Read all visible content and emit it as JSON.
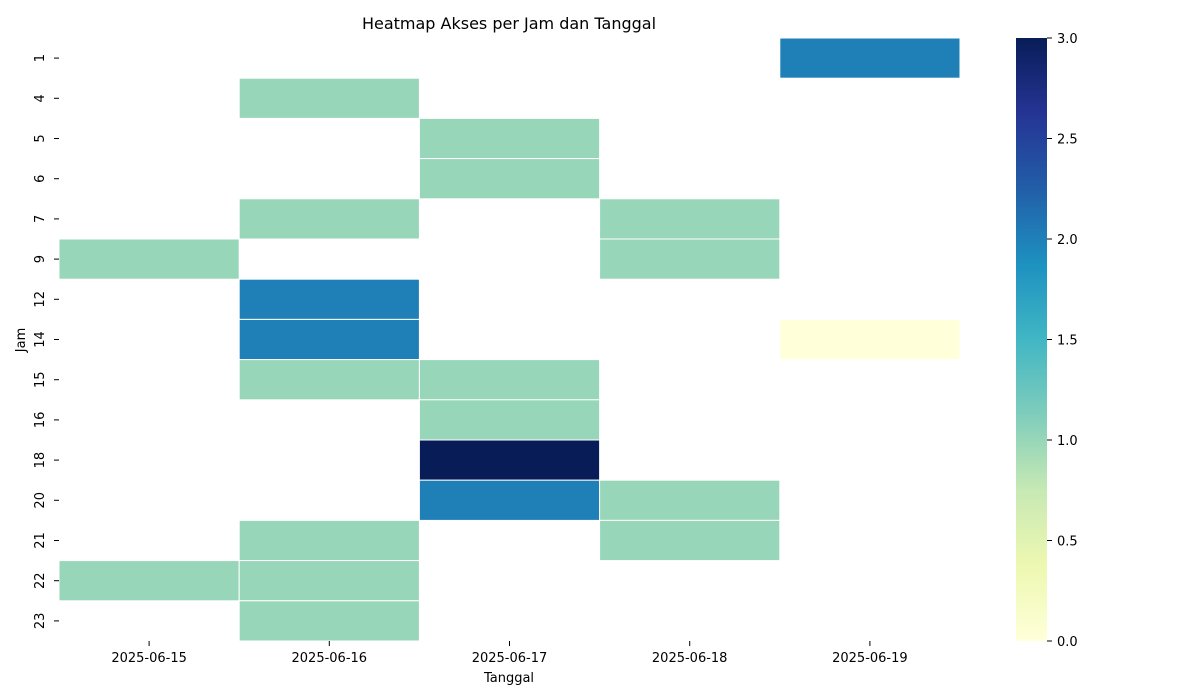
{
  "chart_data": {
    "type": "heatmap",
    "title": "Heatmap Akses per Jam dan Tanggal",
    "xlabel": "Tanggal",
    "ylabel": "Jam",
    "x_categories": [
      "2025-06-15",
      "2025-06-16",
      "2025-06-17",
      "2025-06-18",
      "2025-06-19"
    ],
    "y_categories": [
      "1",
      "4",
      "5",
      "6",
      "7",
      "9",
      "12",
      "14",
      "15",
      "16",
      "18",
      "20",
      "21",
      "22",
      "23"
    ],
    "values": [
      [
        null,
        null,
        null,
        null,
        2
      ],
      [
        null,
        1,
        null,
        null,
        null
      ],
      [
        null,
        null,
        1,
        null,
        null
      ],
      [
        null,
        null,
        1,
        null,
        null
      ],
      [
        null,
        1,
        null,
        1,
        null
      ],
      [
        1,
        null,
        null,
        1,
        null
      ],
      [
        null,
        2,
        null,
        null,
        null
      ],
      [
        null,
        2,
        null,
        null,
        0
      ],
      [
        null,
        1,
        1,
        null,
        null
      ],
      [
        null,
        null,
        1,
        null,
        null
      ],
      [
        null,
        null,
        3,
        null,
        null
      ],
      [
        null,
        null,
        2,
        1,
        null
      ],
      [
        null,
        1,
        null,
        1,
        null
      ],
      [
        1,
        1,
        null,
        null,
        null
      ],
      [
        null,
        1,
        null,
        null,
        null
      ]
    ],
    "colorbar": {
      "min": 0,
      "max": 3,
      "ticks": [
        "0.0",
        "0.5",
        "1.0",
        "1.5",
        "2.0",
        "2.5",
        "3.0"
      ],
      "colormap": "YlGnBu"
    }
  }
}
